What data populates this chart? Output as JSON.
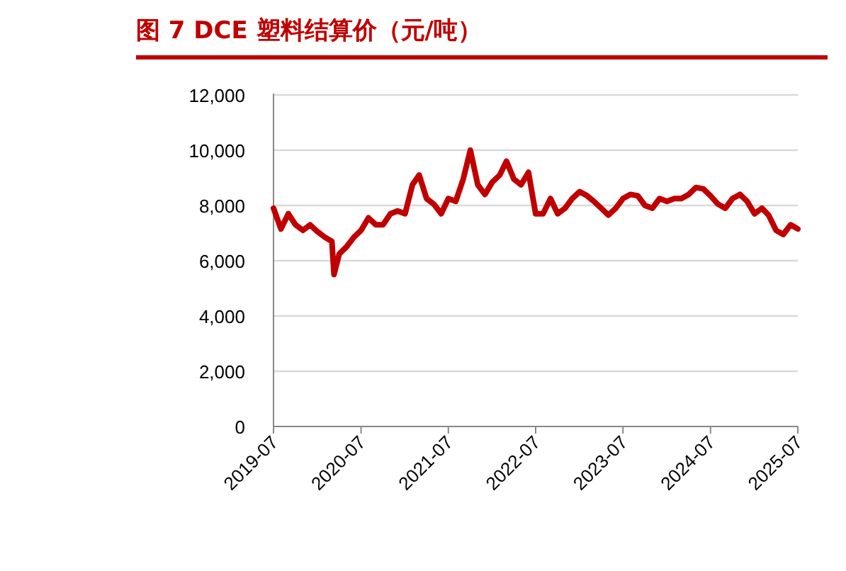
{
  "chart_data": {
    "type": "line",
    "title": "图 7  DCE 塑料结算价（元/吨）",
    "x": [
      "2019-07",
      "2019-08",
      "2019-09",
      "2019-10",
      "2019-11",
      "2019-12",
      "2020-01",
      "2020-02",
      "2020-03",
      "2020-03-10",
      "2020-04",
      "2020-05",
      "2020-06",
      "2020-07",
      "2020-08",
      "2020-09",
      "2020-10",
      "2020-11",
      "2020-12",
      "2021-01",
      "2021-02",
      "2021-03",
      "2021-04",
      "2021-05",
      "2021-06",
      "2021-07",
      "2021-08",
      "2021-09",
      "2021-10",
      "2021-11",
      "2021-12",
      "2022-01",
      "2022-02",
      "2022-03",
      "2022-04",
      "2022-05",
      "2022-06",
      "2022-07",
      "2022-08",
      "2022-09",
      "2022-10",
      "2022-11",
      "2022-12",
      "2023-01",
      "2023-02",
      "2023-03",
      "2023-04",
      "2023-05",
      "2023-06",
      "2023-07",
      "2023-08",
      "2023-09",
      "2023-10",
      "2023-11",
      "2023-12",
      "2024-01",
      "2024-02",
      "2024-03",
      "2024-04",
      "2024-05",
      "2024-06",
      "2024-07",
      "2024-08",
      "2024-09",
      "2024-10",
      "2024-11",
      "2024-12",
      "2025-01",
      "2025-02",
      "2025-03",
      "2025-04",
      "2025-05",
      "2025-06",
      "2025-07"
    ],
    "series": [
      {
        "color": "#c00000",
        "values": [
          7900,
          7150,
          7700,
          7300,
          7100,
          7300,
          7050,
          6850,
          6700,
          5500,
          6250,
          6500,
          6850,
          7100,
          7550,
          7300,
          7300,
          7700,
          7800,
          7700,
          8750,
          9100,
          8250,
          8050,
          7700,
          8250,
          8150,
          8950,
          10000,
          8750,
          8400,
          8850,
          9100,
          9600,
          8950,
          8750,
          9200,
          7700,
          7700,
          8250,
          7700,
          7900,
          8250,
          8500,
          8350,
          8150,
          7900,
          7650,
          7900,
          8250,
          8400,
          8350,
          8000,
          7900,
          8250,
          8150,
          8250,
          8250,
          8400,
          8650,
          8600,
          8350,
          8050,
          7900,
          8250,
          8400,
          8150,
          7700,
          7900,
          7650,
          7100,
          6950,
          7300,
          7150
        ]
      }
    ],
    "xlim": [
      "2019-07",
      "2025-07"
    ],
    "xticks": [
      "2019-07",
      "2020-07",
      "2021-07",
      "2022-07",
      "2023-07",
      "2024-07",
      "2025-07"
    ],
    "ylim": [
      0,
      12000
    ],
    "yticks": [
      0,
      {
        "value": 2000,
        "label": "2,000"
      },
      {
        "value": 4000,
        "label": "4,000"
      },
      {
        "value": 6000,
        "label": "6,000"
      },
      {
        "value": 8000,
        "label": "8,000"
      },
      {
        "value": 10000,
        "label": "10,000"
      },
      {
        "value": 12000,
        "label": "12,000"
      }
    ],
    "grid": "y",
    "line_style": "solid",
    "marker": "none"
  }
}
